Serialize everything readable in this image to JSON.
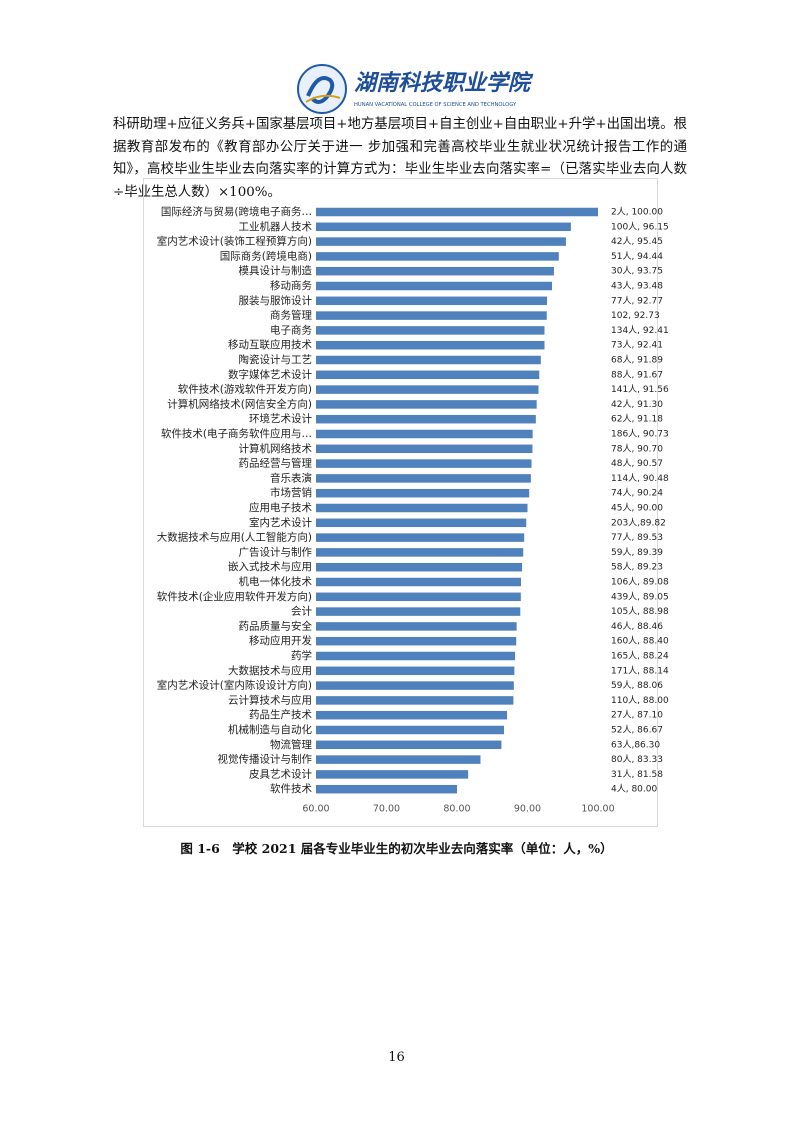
{
  "header": {
    "title": "湖南科技职业学院",
    "subtitle": "HUNAN VACATIONAL COLLEGE OF SCIENCE AND TECHNOLOGY"
  },
  "paragraph": "科研助理+应征义务兵+国家基层项目+地方基层项目+自主创业+自由职业+升学+出国出境。根据教育部发布的《教育部办公厅关于进一 步加强和完善高校毕业生就业状况统计报告工作的通知》，高校毕业生毕业去向落实率的计算方式为：毕业生毕业去向落实率=（已落实毕业去向人数÷毕业生总人数）×100%。",
  "chart_data": {
    "type": "bar",
    "orientation": "horizontal",
    "color": "#4f81bd",
    "categories": [
      "国际经济与贸易(跨境电子商务…",
      "工业机器人技术",
      "室内艺术设计(装饰工程预算方向)",
      "国际商务(跨境电商)",
      "模具设计与制造",
      "移动商务",
      "服装与服饰设计",
      "商务管理",
      "电子商务",
      "移动互联应用技术",
      "陶瓷设计与工艺",
      "数字媒体艺术设计",
      "软件技术(游戏软件开发方向)",
      "计算机网络技术(网信安全方向)",
      "环境艺术设计",
      "软件技术(电子商务软件应用与…",
      "计算机网络技术",
      "药品经营与管理",
      "音乐表演",
      "市场营销",
      "应用电子技术",
      "室内艺术设计",
      "大数据技术与应用(人工智能方向)",
      "广告设计与制作",
      "嵌入式技术与应用",
      "机电一体化技术",
      "软件技术(企业应用软件开发方向)",
      "会计",
      "药品质量与安全",
      "移动应用开发",
      "药学",
      "大数据技术与应用",
      "室内艺术设计(室内陈设设计方向)",
      "云计算技术与应用",
      "药品生产技术",
      "机械制造与自动化",
      "物流管理",
      "视觉传播设计与制作",
      "皮具艺术设计",
      "软件技术"
    ],
    "values": [
      100.0,
      96.15,
      95.45,
      94.44,
      93.75,
      93.48,
      92.77,
      92.73,
      92.41,
      92.41,
      91.89,
      91.67,
      91.56,
      91.3,
      91.18,
      90.73,
      90.7,
      90.57,
      90.48,
      90.24,
      90.0,
      89.82,
      89.53,
      89.39,
      89.23,
      89.08,
      89.05,
      88.98,
      88.46,
      88.4,
      88.24,
      88.14,
      88.06,
      88.0,
      87.1,
      86.67,
      86.3,
      83.33,
      81.58,
      80.0
    ],
    "value_labels": [
      "2人, 100.00",
      "100人, 96.15",
      "42人, 95.45",
      "51人, 94.44",
      "30人, 93.75",
      "43人, 93.48",
      "77人, 92.77",
      "102, 92.73",
      "134人, 92.41",
      "73人, 92.41",
      "68人, 91.89",
      "88人, 91.67",
      "141人, 91.56",
      "42人, 91.30",
      "62人, 91.18",
      "186人, 90.73",
      "78人, 90.70",
      "48人, 90.57",
      "114人, 90.48",
      "74人, 90.24",
      "45人, 90.00",
      "203人,89.82",
      "77人, 89.53",
      "59人, 89.39",
      "58人, 89.23",
      "106人, 89.08",
      "439人, 89.05",
      "105人, 88.98",
      "46人, 88.46",
      "160人, 88.40",
      "165人, 88.24",
      "171人, 88.14",
      "59人, 88.06",
      "110人, 88.00",
      "27人, 87.10",
      "52人, 86.67",
      "63人,86.30",
      "80人, 83.33",
      "31人, 81.58",
      "4人, 80.00"
    ],
    "xlim": [
      60,
      100
    ],
    "xticks": [
      {
        "value": 60,
        "label": "60.00"
      },
      {
        "value": 70,
        "label": "70.00"
      },
      {
        "value": 80,
        "label": "80.00"
      },
      {
        "value": 90,
        "label": "90.00"
      },
      {
        "value": 100,
        "label": "100.00"
      }
    ]
  },
  "caption": "图 1-6　学校 2021 届各专业毕业生的初次毕业去向落实率（单位：人，%）",
  "page_number": "16"
}
